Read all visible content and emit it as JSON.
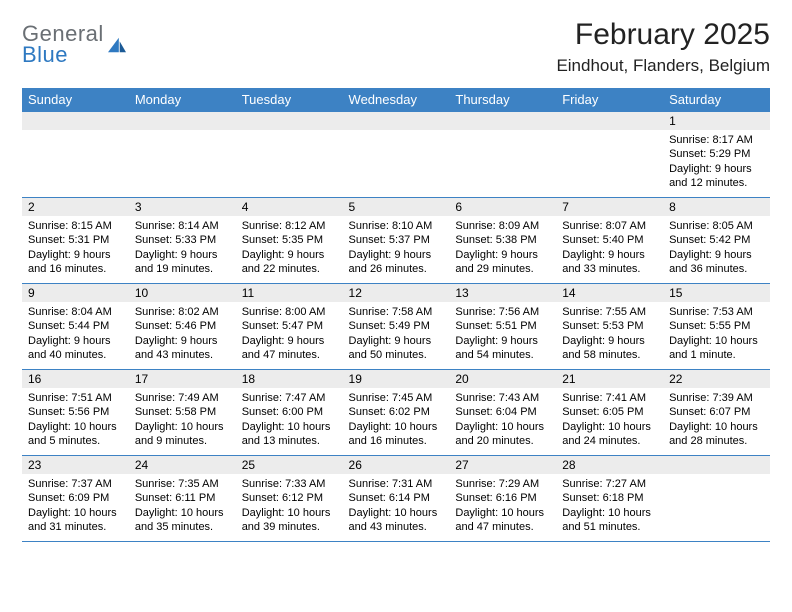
{
  "logo": {
    "line1": "General",
    "line2": "Blue"
  },
  "title": {
    "month": "February 2025",
    "location": "Eindhout, Flanders, Belgium"
  },
  "header_bg": "#3d82c4",
  "daynum_bg": "#ececec",
  "weekdays": [
    "Sunday",
    "Monday",
    "Tuesday",
    "Wednesday",
    "Thursday",
    "Friday",
    "Saturday"
  ],
  "weeks": [
    [
      {
        "n": "",
        "sr": "",
        "ss": "",
        "dl": ""
      },
      {
        "n": "",
        "sr": "",
        "ss": "",
        "dl": ""
      },
      {
        "n": "",
        "sr": "",
        "ss": "",
        "dl": ""
      },
      {
        "n": "",
        "sr": "",
        "ss": "",
        "dl": ""
      },
      {
        "n": "",
        "sr": "",
        "ss": "",
        "dl": ""
      },
      {
        "n": "",
        "sr": "",
        "ss": "",
        "dl": ""
      },
      {
        "n": "1",
        "sr": "Sunrise: 8:17 AM",
        "ss": "Sunset: 5:29 PM",
        "dl": "Daylight: 9 hours and 12 minutes."
      }
    ],
    [
      {
        "n": "2",
        "sr": "Sunrise: 8:15 AM",
        "ss": "Sunset: 5:31 PM",
        "dl": "Daylight: 9 hours and 16 minutes."
      },
      {
        "n": "3",
        "sr": "Sunrise: 8:14 AM",
        "ss": "Sunset: 5:33 PM",
        "dl": "Daylight: 9 hours and 19 minutes."
      },
      {
        "n": "4",
        "sr": "Sunrise: 8:12 AM",
        "ss": "Sunset: 5:35 PM",
        "dl": "Daylight: 9 hours and 22 minutes."
      },
      {
        "n": "5",
        "sr": "Sunrise: 8:10 AM",
        "ss": "Sunset: 5:37 PM",
        "dl": "Daylight: 9 hours and 26 minutes."
      },
      {
        "n": "6",
        "sr": "Sunrise: 8:09 AM",
        "ss": "Sunset: 5:38 PM",
        "dl": "Daylight: 9 hours and 29 minutes."
      },
      {
        "n": "7",
        "sr": "Sunrise: 8:07 AM",
        "ss": "Sunset: 5:40 PM",
        "dl": "Daylight: 9 hours and 33 minutes."
      },
      {
        "n": "8",
        "sr": "Sunrise: 8:05 AM",
        "ss": "Sunset: 5:42 PM",
        "dl": "Daylight: 9 hours and 36 minutes."
      }
    ],
    [
      {
        "n": "9",
        "sr": "Sunrise: 8:04 AM",
        "ss": "Sunset: 5:44 PM",
        "dl": "Daylight: 9 hours and 40 minutes."
      },
      {
        "n": "10",
        "sr": "Sunrise: 8:02 AM",
        "ss": "Sunset: 5:46 PM",
        "dl": "Daylight: 9 hours and 43 minutes."
      },
      {
        "n": "11",
        "sr": "Sunrise: 8:00 AM",
        "ss": "Sunset: 5:47 PM",
        "dl": "Daylight: 9 hours and 47 minutes."
      },
      {
        "n": "12",
        "sr": "Sunrise: 7:58 AM",
        "ss": "Sunset: 5:49 PM",
        "dl": "Daylight: 9 hours and 50 minutes."
      },
      {
        "n": "13",
        "sr": "Sunrise: 7:56 AM",
        "ss": "Sunset: 5:51 PM",
        "dl": "Daylight: 9 hours and 54 minutes."
      },
      {
        "n": "14",
        "sr": "Sunrise: 7:55 AM",
        "ss": "Sunset: 5:53 PM",
        "dl": "Daylight: 9 hours and 58 minutes."
      },
      {
        "n": "15",
        "sr": "Sunrise: 7:53 AM",
        "ss": "Sunset: 5:55 PM",
        "dl": "Daylight: 10 hours and 1 minute."
      }
    ],
    [
      {
        "n": "16",
        "sr": "Sunrise: 7:51 AM",
        "ss": "Sunset: 5:56 PM",
        "dl": "Daylight: 10 hours and 5 minutes."
      },
      {
        "n": "17",
        "sr": "Sunrise: 7:49 AM",
        "ss": "Sunset: 5:58 PM",
        "dl": "Daylight: 10 hours and 9 minutes."
      },
      {
        "n": "18",
        "sr": "Sunrise: 7:47 AM",
        "ss": "Sunset: 6:00 PM",
        "dl": "Daylight: 10 hours and 13 minutes."
      },
      {
        "n": "19",
        "sr": "Sunrise: 7:45 AM",
        "ss": "Sunset: 6:02 PM",
        "dl": "Daylight: 10 hours and 16 minutes."
      },
      {
        "n": "20",
        "sr": "Sunrise: 7:43 AM",
        "ss": "Sunset: 6:04 PM",
        "dl": "Daylight: 10 hours and 20 minutes."
      },
      {
        "n": "21",
        "sr": "Sunrise: 7:41 AM",
        "ss": "Sunset: 6:05 PM",
        "dl": "Daylight: 10 hours and 24 minutes."
      },
      {
        "n": "22",
        "sr": "Sunrise: 7:39 AM",
        "ss": "Sunset: 6:07 PM",
        "dl": "Daylight: 10 hours and 28 minutes."
      }
    ],
    [
      {
        "n": "23",
        "sr": "Sunrise: 7:37 AM",
        "ss": "Sunset: 6:09 PM",
        "dl": "Daylight: 10 hours and 31 minutes."
      },
      {
        "n": "24",
        "sr": "Sunrise: 7:35 AM",
        "ss": "Sunset: 6:11 PM",
        "dl": "Daylight: 10 hours and 35 minutes."
      },
      {
        "n": "25",
        "sr": "Sunrise: 7:33 AM",
        "ss": "Sunset: 6:12 PM",
        "dl": "Daylight: 10 hours and 39 minutes."
      },
      {
        "n": "26",
        "sr": "Sunrise: 7:31 AM",
        "ss": "Sunset: 6:14 PM",
        "dl": "Daylight: 10 hours and 43 minutes."
      },
      {
        "n": "27",
        "sr": "Sunrise: 7:29 AM",
        "ss": "Sunset: 6:16 PM",
        "dl": "Daylight: 10 hours and 47 minutes."
      },
      {
        "n": "28",
        "sr": "Sunrise: 7:27 AM",
        "ss": "Sunset: 6:18 PM",
        "dl": "Daylight: 10 hours and 51 minutes."
      },
      {
        "n": "",
        "sr": "",
        "ss": "",
        "dl": ""
      }
    ]
  ]
}
